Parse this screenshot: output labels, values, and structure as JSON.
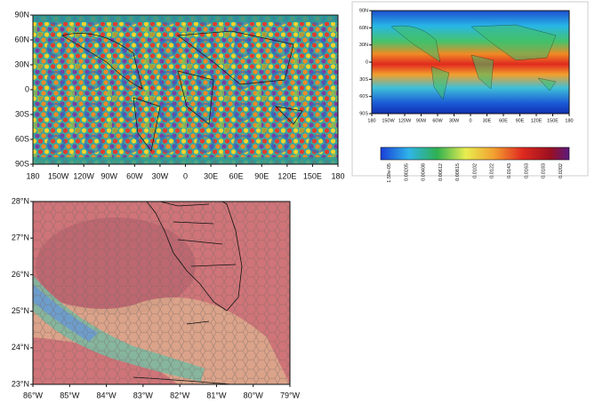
{
  "panels": [
    {
      "lat_labels": [
        "90N",
        "60N",
        "30N",
        "0",
        "30S",
        "60S",
        "90S"
      ],
      "lon_labels": [
        "180",
        "150W",
        "120W",
        "90W",
        "60W",
        "30W",
        "0",
        "30E",
        "60E",
        "90E",
        "120E",
        "150E",
        "180"
      ]
    },
    {
      "lat_labels": [
        "90N",
        "60N",
        "30N",
        "0",
        "30S",
        "60S",
        "90S"
      ],
      "lon_labels": [
        "180",
        "150W",
        "120W",
        "90W",
        "60W",
        "30W",
        "0",
        "30E",
        "60E",
        "90E",
        "120E",
        "150E",
        "180"
      ],
      "colorbar_labels": [
        "1.59e-05",
        "0.00205",
        "0.00408",
        "0.00612",
        "0.00815",
        "0.0102",
        "0.0122",
        "0.0143",
        "0.0163",
        "0.0183",
        "0.0202"
      ]
    },
    {
      "lat_labels": [
        "28°N",
        "27°N",
        "26°N",
        "25°N",
        "24°N",
        "23°N"
      ],
      "lon_labels": [
        "86°W",
        "85°W",
        "84°W",
        "83°W",
        "82°W",
        "81°W",
        "80°W",
        "79°W"
      ]
    }
  ]
}
